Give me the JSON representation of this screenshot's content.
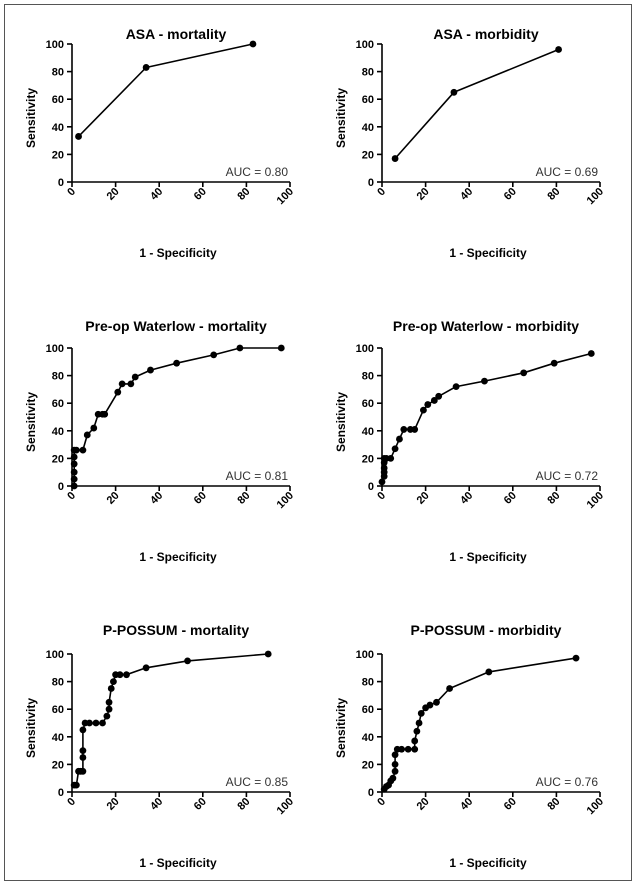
{
  "chart_data": [
    {
      "type": "line",
      "title": "ASA - mortality",
      "xlabel": "1 - Specificity",
      "ylabel": "Sensitivity",
      "xlim": [
        0,
        100
      ],
      "ylim": [
        0,
        100
      ],
      "xticks": [
        "0",
        "20",
        "40",
        "60",
        "80",
        "100"
      ],
      "yticks": [
        "0",
        "20",
        "40",
        "60",
        "80",
        "100"
      ],
      "annotation": "AUC = 0.80",
      "x": [
        3,
        34,
        83
      ],
      "y": [
        33,
        83,
        100
      ]
    },
    {
      "type": "line",
      "title": "ASA - morbidity",
      "xlabel": "1 - Specificity",
      "ylabel": "Sensitivity",
      "xlim": [
        0,
        100
      ],
      "ylim": [
        0,
        100
      ],
      "xticks": [
        "0",
        "20",
        "40",
        "60",
        "80",
        "100"
      ],
      "yticks": [
        "0",
        "20",
        "40",
        "60",
        "80",
        "100"
      ],
      "annotation": "AUC = 0.69",
      "x": [
        6,
        33,
        81
      ],
      "y": [
        17,
        65,
        96
      ]
    },
    {
      "type": "line",
      "title": "Pre-op Waterlow - mortality",
      "xlabel": "1 - Specificity",
      "ylabel": "Sensitivity",
      "xlim": [
        0,
        100
      ],
      "ylim": [
        0,
        100
      ],
      "xticks": [
        "0",
        "20",
        "40",
        "60",
        "80",
        "100"
      ],
      "yticks": [
        "0",
        "20",
        "40",
        "60",
        "80",
        "100"
      ],
      "annotation": "AUC = 0.81",
      "x": [
        1,
        1,
        1,
        1,
        1,
        1,
        2,
        5,
        7,
        10,
        12,
        14,
        15,
        21,
        23,
        27,
        29,
        36,
        48,
        65,
        77,
        96
      ],
      "y": [
        0,
        5,
        10,
        16,
        21,
        26,
        26,
        26,
        37,
        42,
        52,
        52,
        52,
        68,
        74,
        74,
        79,
        84,
        89,
        95,
        100,
        100
      ]
    },
    {
      "type": "line",
      "title": "Pre-op Waterlow - morbidity",
      "xlabel": "1 - Specificity",
      "ylabel": "Sensitivity",
      "xlim": [
        0,
        100
      ],
      "ylim": [
        0,
        100
      ],
      "xticks": [
        "0",
        "20",
        "40",
        "60",
        "80",
        "100"
      ],
      "yticks": [
        "0",
        "20",
        "40",
        "60",
        "80",
        "100"
      ],
      "annotation": "AUC = 0.72",
      "x": [
        0,
        1,
        1,
        1,
        1,
        1,
        2,
        4,
        6,
        8,
        10,
        13,
        15,
        19,
        21,
        24,
        26,
        34,
        47,
        65,
        79,
        96
      ],
      "y": [
        3,
        7,
        10,
        13,
        17,
        20,
        20,
        20,
        27,
        34,
        41,
        41,
        41,
        55,
        59,
        62,
        65,
        72,
        76,
        82,
        89,
        96
      ]
    },
    {
      "type": "line",
      "title": "P-POSSUM - mortality",
      "xlabel": "1 - Specificity",
      "ylabel": "Sensitivity",
      "xlim": [
        0,
        100
      ],
      "ylim": [
        0,
        100
      ],
      "xticks": [
        "0",
        "20",
        "40",
        "60",
        "80",
        "100"
      ],
      "yticks": [
        "0",
        "20",
        "40",
        "60",
        "80",
        "100"
      ],
      "annotation": "AUC = 0.85",
      "x": [
        1,
        2,
        3,
        4,
        5,
        5,
        5,
        5,
        6,
        8,
        11,
        14,
        16,
        17,
        17,
        18,
        19,
        20,
        22,
        25,
        34,
        53,
        90
      ],
      "y": [
        5,
        5,
        15,
        15,
        15,
        25,
        30,
        45,
        50,
        50,
        50,
        50,
        55,
        60,
        65,
        75,
        80,
        85,
        85,
        85,
        90,
        95,
        100
      ]
    },
    {
      "type": "line",
      "title": "P-POSSUM - morbidity",
      "xlabel": "1 - Specificity",
      "ylabel": "Sensitivity",
      "xlim": [
        0,
        100
      ],
      "ylim": [
        0,
        100
      ],
      "xticks": [
        "0",
        "20",
        "40",
        "60",
        "80",
        "100"
      ],
      "yticks": [
        "0",
        "20",
        "40",
        "60",
        "80",
        "100"
      ],
      "annotation": "AUC = 0.76",
      "x": [
        1,
        2,
        3,
        4,
        5,
        6,
        6,
        6,
        7,
        9,
        12,
        15,
        15,
        16,
        17,
        18,
        20,
        22,
        25,
        31,
        49,
        89
      ],
      "y": [
        2,
        4,
        5,
        8,
        10,
        15,
        20,
        27,
        31,
        31,
        31,
        31,
        37,
        44,
        50,
        57,
        61,
        63,
        65,
        75,
        87,
        97
      ]
    }
  ]
}
